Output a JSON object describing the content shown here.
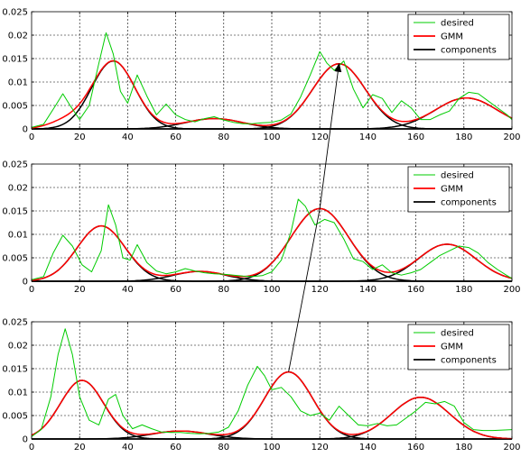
{
  "chart_data": [
    {
      "type": "line",
      "title": "",
      "xlabel": "",
      "ylabel": "",
      "xlim": [
        0,
        200
      ],
      "ylim": [
        0,
        0.025
      ],
      "xticks": [
        "0",
        "20",
        "40",
        "60",
        "80",
        "100",
        "120",
        "140",
        "160",
        "180",
        "200"
      ],
      "yticks": [
        "0",
        "0.005",
        "0.01",
        "0.015",
        "0.02",
        "0.025"
      ],
      "grid": true,
      "legend": {
        "placement": "top-right",
        "entries": [
          "desired",
          "GMM",
          "components"
        ]
      },
      "series": [
        {
          "name": "desired",
          "color": "#00cc00",
          "x": [
            0,
            5,
            10,
            13,
            16,
            20,
            24,
            28,
            31,
            34,
            37,
            40,
            44,
            48,
            52,
            56,
            60,
            64,
            68,
            72,
            76,
            80,
            84,
            88,
            92,
            96,
            100,
            104,
            108,
            112,
            116,
            120,
            123,
            126,
            130,
            134,
            138,
            142,
            146,
            150,
            154,
            158,
            162,
            166,
            170,
            174,
            178,
            182,
            186,
            190,
            194,
            198,
            200
          ],
          "y": [
            0.0003,
            0.001,
            0.005,
            0.0075,
            0.005,
            0.002,
            0.005,
            0.014,
            0.0205,
            0.016,
            0.008,
            0.0055,
            0.0115,
            0.007,
            0.003,
            0.0053,
            0.003,
            0.002,
            0.0015,
            0.0022,
            0.0026,
            0.0019,
            0.0014,
            0.0011,
            0.0011,
            0.0013,
            0.0014,
            0.0019,
            0.0032,
            0.0068,
            0.0115,
            0.0165,
            0.014,
            0.0125,
            0.0145,
            0.0085,
            0.0045,
            0.0073,
            0.0065,
            0.0035,
            0.006,
            0.0045,
            0.002,
            0.002,
            0.003,
            0.0038,
            0.0065,
            0.0078,
            0.0075,
            0.006,
            0.0045,
            0.003,
            0.002
          ]
        },
        {
          "name": "GMM",
          "color": "#ff0000",
          "mix": [
            {
              "mu": 14,
              "sigma": 7,
              "w": 0.0015
            },
            {
              "mu": 34,
              "sigma": 9,
              "w": 0.0145
            },
            {
              "mu": 76,
              "sigma": 12,
              "w": 0.0022
            },
            {
              "mu": 128,
              "sigma": 11,
              "w": 0.0139
            },
            {
              "mu": 181,
              "sigma": 13,
              "w": 0.0066
            }
          ]
        },
        {
          "name": "components",
          "color": "#000000",
          "components": [
            {
              "mu": 34,
              "sigma": 9,
              "w": 0.0145
            },
            {
              "mu": 76,
              "sigma": 12,
              "w": 0.0022
            },
            {
              "mu": 128,
              "sigma": 11,
              "w": 0.0139
            },
            {
              "mu": 181,
              "sigma": 13,
              "w": 0.0066
            }
          ]
        }
      ]
    },
    {
      "type": "line",
      "title": "",
      "xlabel": "",
      "ylabel": "",
      "xlim": [
        0,
        200
      ],
      "ylim": [
        0,
        0.025
      ],
      "xticks": [
        "0",
        "20",
        "40",
        "60",
        "80",
        "100",
        "120",
        "140",
        "160",
        "180",
        "200"
      ],
      "yticks": [
        "0",
        "0.005",
        "0.01",
        "0.015",
        "0.02",
        "0.025"
      ],
      "grid": true,
      "legend": {
        "placement": "top-right",
        "entries": [
          "desired",
          "GMM",
          "components"
        ]
      },
      "series": [
        {
          "name": "desired",
          "color": "#00cc00",
          "x": [
            0,
            5,
            9,
            13,
            17,
            21,
            25,
            29,
            32,
            35,
            38,
            41,
            44,
            48,
            52,
            56,
            60,
            64,
            68,
            72,
            76,
            80,
            84,
            88,
            92,
            96,
            100,
            104,
            108,
            111,
            114,
            118,
            122,
            126,
            130,
            134,
            138,
            142,
            146,
            150,
            154,
            158,
            162,
            166,
            170,
            174,
            178,
            182,
            186,
            190,
            194,
            198,
            200
          ],
          "y": [
            0.0003,
            0.001,
            0.006,
            0.0098,
            0.0075,
            0.0035,
            0.002,
            0.0065,
            0.0163,
            0.012,
            0.005,
            0.0045,
            0.0078,
            0.004,
            0.0022,
            0.0016,
            0.002,
            0.0027,
            0.0022,
            0.0018,
            0.0016,
            0.0015,
            0.0013,
            0.0011,
            0.001,
            0.0012,
            0.002,
            0.0045,
            0.0105,
            0.0175,
            0.016,
            0.012,
            0.0132,
            0.0125,
            0.009,
            0.0048,
            0.0042,
            0.0025,
            0.0035,
            0.0018,
            0.0013,
            0.0018,
            0.0025,
            0.004,
            0.0055,
            0.0065,
            0.0075,
            0.0072,
            0.006,
            0.004,
            0.0025,
            0.0012,
            0.0006
          ]
        },
        {
          "name": "GMM",
          "color": "#ff0000",
          "mix": [
            {
              "mu": 29,
              "sigma": 10,
              "w": 0.0118
            },
            {
              "mu": 70,
              "sigma": 11,
              "w": 0.0021
            },
            {
              "mu": 120,
              "sigma": 12,
              "w": 0.0155
            },
            {
              "mu": 173,
              "sigma": 12,
              "w": 0.0079
            }
          ]
        },
        {
          "name": "components",
          "color": "#000000",
          "components": [
            {
              "mu": 29,
              "sigma": 10,
              "w": 0.0118
            },
            {
              "mu": 70,
              "sigma": 11,
              "w": 0.0021
            },
            {
              "mu": 120,
              "sigma": 12,
              "w": 0.0155
            },
            {
              "mu": 173,
              "sigma": 12,
              "w": 0.0079
            }
          ]
        }
      ]
    },
    {
      "type": "line",
      "title": "",
      "xlabel": "",
      "ylabel": "",
      "xlim": [
        0,
        200
      ],
      "ylim": [
        0,
        0.025
      ],
      "xticks": [
        "0",
        "20",
        "40",
        "60",
        "80",
        "100",
        "120",
        "140",
        "160",
        "180",
        "200"
      ],
      "yticks": [
        "0",
        "0.005",
        "0.01",
        "0.015",
        "0.02",
        "0.025"
      ],
      "grid": true,
      "legend": {
        "placement": "top-right",
        "entries": [
          "desired",
          "GMM",
          "components"
        ]
      },
      "series": [
        {
          "name": "desired",
          "color": "#00cc00",
          "x": [
            0,
            4,
            8,
            11,
            14,
            17,
            20,
            24,
            28,
            32,
            35,
            38,
            42,
            46,
            50,
            54,
            58,
            62,
            66,
            70,
            74,
            78,
            82,
            86,
            90,
            94,
            97,
            100,
            104,
            108,
            112,
            116,
            120,
            124,
            128,
            132,
            136,
            140,
            144,
            148,
            152,
            156,
            160,
            164,
            168,
            172,
            176,
            180,
            184,
            188,
            192,
            196,
            200
          ],
          "y": [
            0.0005,
            0.002,
            0.009,
            0.018,
            0.0235,
            0.018,
            0.009,
            0.004,
            0.003,
            0.0085,
            0.0095,
            0.005,
            0.0022,
            0.003,
            0.0022,
            0.0015,
            0.0014,
            0.0014,
            0.0012,
            0.0011,
            0.0012,
            0.0015,
            0.0025,
            0.006,
            0.0115,
            0.0155,
            0.0135,
            0.0105,
            0.011,
            0.009,
            0.006,
            0.005,
            0.0055,
            0.004,
            0.007,
            0.005,
            0.003,
            0.0028,
            0.0033,
            0.0028,
            0.003,
            0.0045,
            0.006,
            0.0078,
            0.0075,
            0.008,
            0.007,
            0.0035,
            0.002,
            0.0018,
            0.0018,
            0.0019,
            0.002
          ]
        },
        {
          "name": "GMM",
          "color": "#ff0000",
          "mix": [
            {
              "mu": 21,
              "sigma": 9,
              "w": 0.0125
            },
            {
              "mu": 62,
              "sigma": 12,
              "w": 0.0017
            },
            {
              "mu": 107,
              "sigma": 10,
              "w": 0.0143
            },
            {
              "mu": 162,
              "sigma": 12,
              "w": 0.0089
            }
          ]
        },
        {
          "name": "components",
          "color": "#000000",
          "components": [
            {
              "mu": 21,
              "sigma": 9,
              "w": 0.0125
            },
            {
              "mu": 62,
              "sigma": 12,
              "w": 0.0017
            },
            {
              "mu": 107,
              "sigma": 10,
              "w": 0.0143
            },
            {
              "mu": 162,
              "sigma": 12,
              "w": 0.0089
            }
          ]
        }
      ]
    }
  ],
  "annotation": {
    "type": "arrow",
    "from": {
      "panel": 2,
      "x": 107,
      "y": 0.0143
    },
    "via": {
      "panel": 1,
      "x": 120,
      "y": 0.0155
    },
    "to": {
      "panel": 0,
      "x": 128,
      "y": 0.0139
    }
  }
}
